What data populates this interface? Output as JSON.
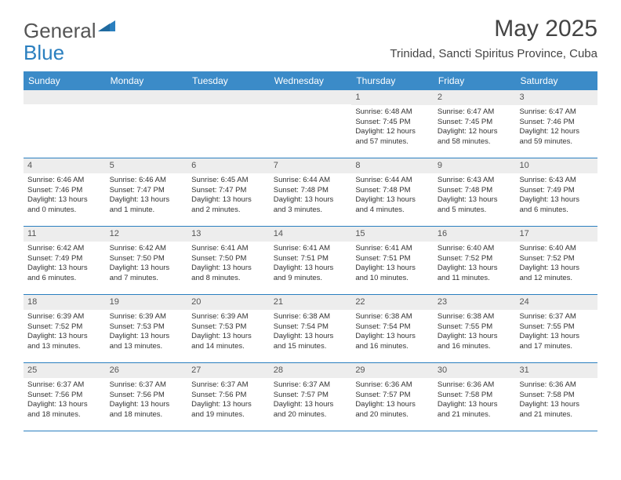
{
  "logo": {
    "part1": "General",
    "part2": "Blue"
  },
  "title": "May 2025",
  "location": "Trinidad, Sancti Spiritus Province, Cuba",
  "colors": {
    "header_bg": "#3b8bc8",
    "border": "#2a7fbf",
    "daynum_bg": "#ededed",
    "text": "#333333"
  },
  "weekdays": [
    "Sunday",
    "Monday",
    "Tuesday",
    "Wednesday",
    "Thursday",
    "Friday",
    "Saturday"
  ],
  "weeks": [
    [
      null,
      null,
      null,
      null,
      {
        "n": "1",
        "sr": "Sunrise: 6:48 AM",
        "ss": "Sunset: 7:45 PM",
        "d1": "Daylight: 12 hours",
        "d2": "and 57 minutes."
      },
      {
        "n": "2",
        "sr": "Sunrise: 6:47 AM",
        "ss": "Sunset: 7:45 PM",
        "d1": "Daylight: 12 hours",
        "d2": "and 58 minutes."
      },
      {
        "n": "3",
        "sr": "Sunrise: 6:47 AM",
        "ss": "Sunset: 7:46 PM",
        "d1": "Daylight: 12 hours",
        "d2": "and 59 minutes."
      }
    ],
    [
      {
        "n": "4",
        "sr": "Sunrise: 6:46 AM",
        "ss": "Sunset: 7:46 PM",
        "d1": "Daylight: 13 hours",
        "d2": "and 0 minutes."
      },
      {
        "n": "5",
        "sr": "Sunrise: 6:46 AM",
        "ss": "Sunset: 7:47 PM",
        "d1": "Daylight: 13 hours",
        "d2": "and 1 minute."
      },
      {
        "n": "6",
        "sr": "Sunrise: 6:45 AM",
        "ss": "Sunset: 7:47 PM",
        "d1": "Daylight: 13 hours",
        "d2": "and 2 minutes."
      },
      {
        "n": "7",
        "sr": "Sunrise: 6:44 AM",
        "ss": "Sunset: 7:48 PM",
        "d1": "Daylight: 13 hours",
        "d2": "and 3 minutes."
      },
      {
        "n": "8",
        "sr": "Sunrise: 6:44 AM",
        "ss": "Sunset: 7:48 PM",
        "d1": "Daylight: 13 hours",
        "d2": "and 4 minutes."
      },
      {
        "n": "9",
        "sr": "Sunrise: 6:43 AM",
        "ss": "Sunset: 7:48 PM",
        "d1": "Daylight: 13 hours",
        "d2": "and 5 minutes."
      },
      {
        "n": "10",
        "sr": "Sunrise: 6:43 AM",
        "ss": "Sunset: 7:49 PM",
        "d1": "Daylight: 13 hours",
        "d2": "and 6 minutes."
      }
    ],
    [
      {
        "n": "11",
        "sr": "Sunrise: 6:42 AM",
        "ss": "Sunset: 7:49 PM",
        "d1": "Daylight: 13 hours",
        "d2": "and 6 minutes."
      },
      {
        "n": "12",
        "sr": "Sunrise: 6:42 AM",
        "ss": "Sunset: 7:50 PM",
        "d1": "Daylight: 13 hours",
        "d2": "and 7 minutes."
      },
      {
        "n": "13",
        "sr": "Sunrise: 6:41 AM",
        "ss": "Sunset: 7:50 PM",
        "d1": "Daylight: 13 hours",
        "d2": "and 8 minutes."
      },
      {
        "n": "14",
        "sr": "Sunrise: 6:41 AM",
        "ss": "Sunset: 7:51 PM",
        "d1": "Daylight: 13 hours",
        "d2": "and 9 minutes."
      },
      {
        "n": "15",
        "sr": "Sunrise: 6:41 AM",
        "ss": "Sunset: 7:51 PM",
        "d1": "Daylight: 13 hours",
        "d2": "and 10 minutes."
      },
      {
        "n": "16",
        "sr": "Sunrise: 6:40 AM",
        "ss": "Sunset: 7:52 PM",
        "d1": "Daylight: 13 hours",
        "d2": "and 11 minutes."
      },
      {
        "n": "17",
        "sr": "Sunrise: 6:40 AM",
        "ss": "Sunset: 7:52 PM",
        "d1": "Daylight: 13 hours",
        "d2": "and 12 minutes."
      }
    ],
    [
      {
        "n": "18",
        "sr": "Sunrise: 6:39 AM",
        "ss": "Sunset: 7:52 PM",
        "d1": "Daylight: 13 hours",
        "d2": "and 13 minutes."
      },
      {
        "n": "19",
        "sr": "Sunrise: 6:39 AM",
        "ss": "Sunset: 7:53 PM",
        "d1": "Daylight: 13 hours",
        "d2": "and 13 minutes."
      },
      {
        "n": "20",
        "sr": "Sunrise: 6:39 AM",
        "ss": "Sunset: 7:53 PM",
        "d1": "Daylight: 13 hours",
        "d2": "and 14 minutes."
      },
      {
        "n": "21",
        "sr": "Sunrise: 6:38 AM",
        "ss": "Sunset: 7:54 PM",
        "d1": "Daylight: 13 hours",
        "d2": "and 15 minutes."
      },
      {
        "n": "22",
        "sr": "Sunrise: 6:38 AM",
        "ss": "Sunset: 7:54 PM",
        "d1": "Daylight: 13 hours",
        "d2": "and 16 minutes."
      },
      {
        "n": "23",
        "sr": "Sunrise: 6:38 AM",
        "ss": "Sunset: 7:55 PM",
        "d1": "Daylight: 13 hours",
        "d2": "and 16 minutes."
      },
      {
        "n": "24",
        "sr": "Sunrise: 6:37 AM",
        "ss": "Sunset: 7:55 PM",
        "d1": "Daylight: 13 hours",
        "d2": "and 17 minutes."
      }
    ],
    [
      {
        "n": "25",
        "sr": "Sunrise: 6:37 AM",
        "ss": "Sunset: 7:56 PM",
        "d1": "Daylight: 13 hours",
        "d2": "and 18 minutes."
      },
      {
        "n": "26",
        "sr": "Sunrise: 6:37 AM",
        "ss": "Sunset: 7:56 PM",
        "d1": "Daylight: 13 hours",
        "d2": "and 18 minutes."
      },
      {
        "n": "27",
        "sr": "Sunrise: 6:37 AM",
        "ss": "Sunset: 7:56 PM",
        "d1": "Daylight: 13 hours",
        "d2": "and 19 minutes."
      },
      {
        "n": "28",
        "sr": "Sunrise: 6:37 AM",
        "ss": "Sunset: 7:57 PM",
        "d1": "Daylight: 13 hours",
        "d2": "and 20 minutes."
      },
      {
        "n": "29",
        "sr": "Sunrise: 6:36 AM",
        "ss": "Sunset: 7:57 PM",
        "d1": "Daylight: 13 hours",
        "d2": "and 20 minutes."
      },
      {
        "n": "30",
        "sr": "Sunrise: 6:36 AM",
        "ss": "Sunset: 7:58 PM",
        "d1": "Daylight: 13 hours",
        "d2": "and 21 minutes."
      },
      {
        "n": "31",
        "sr": "Sunrise: 6:36 AM",
        "ss": "Sunset: 7:58 PM",
        "d1": "Daylight: 13 hours",
        "d2": "and 21 minutes."
      }
    ]
  ]
}
